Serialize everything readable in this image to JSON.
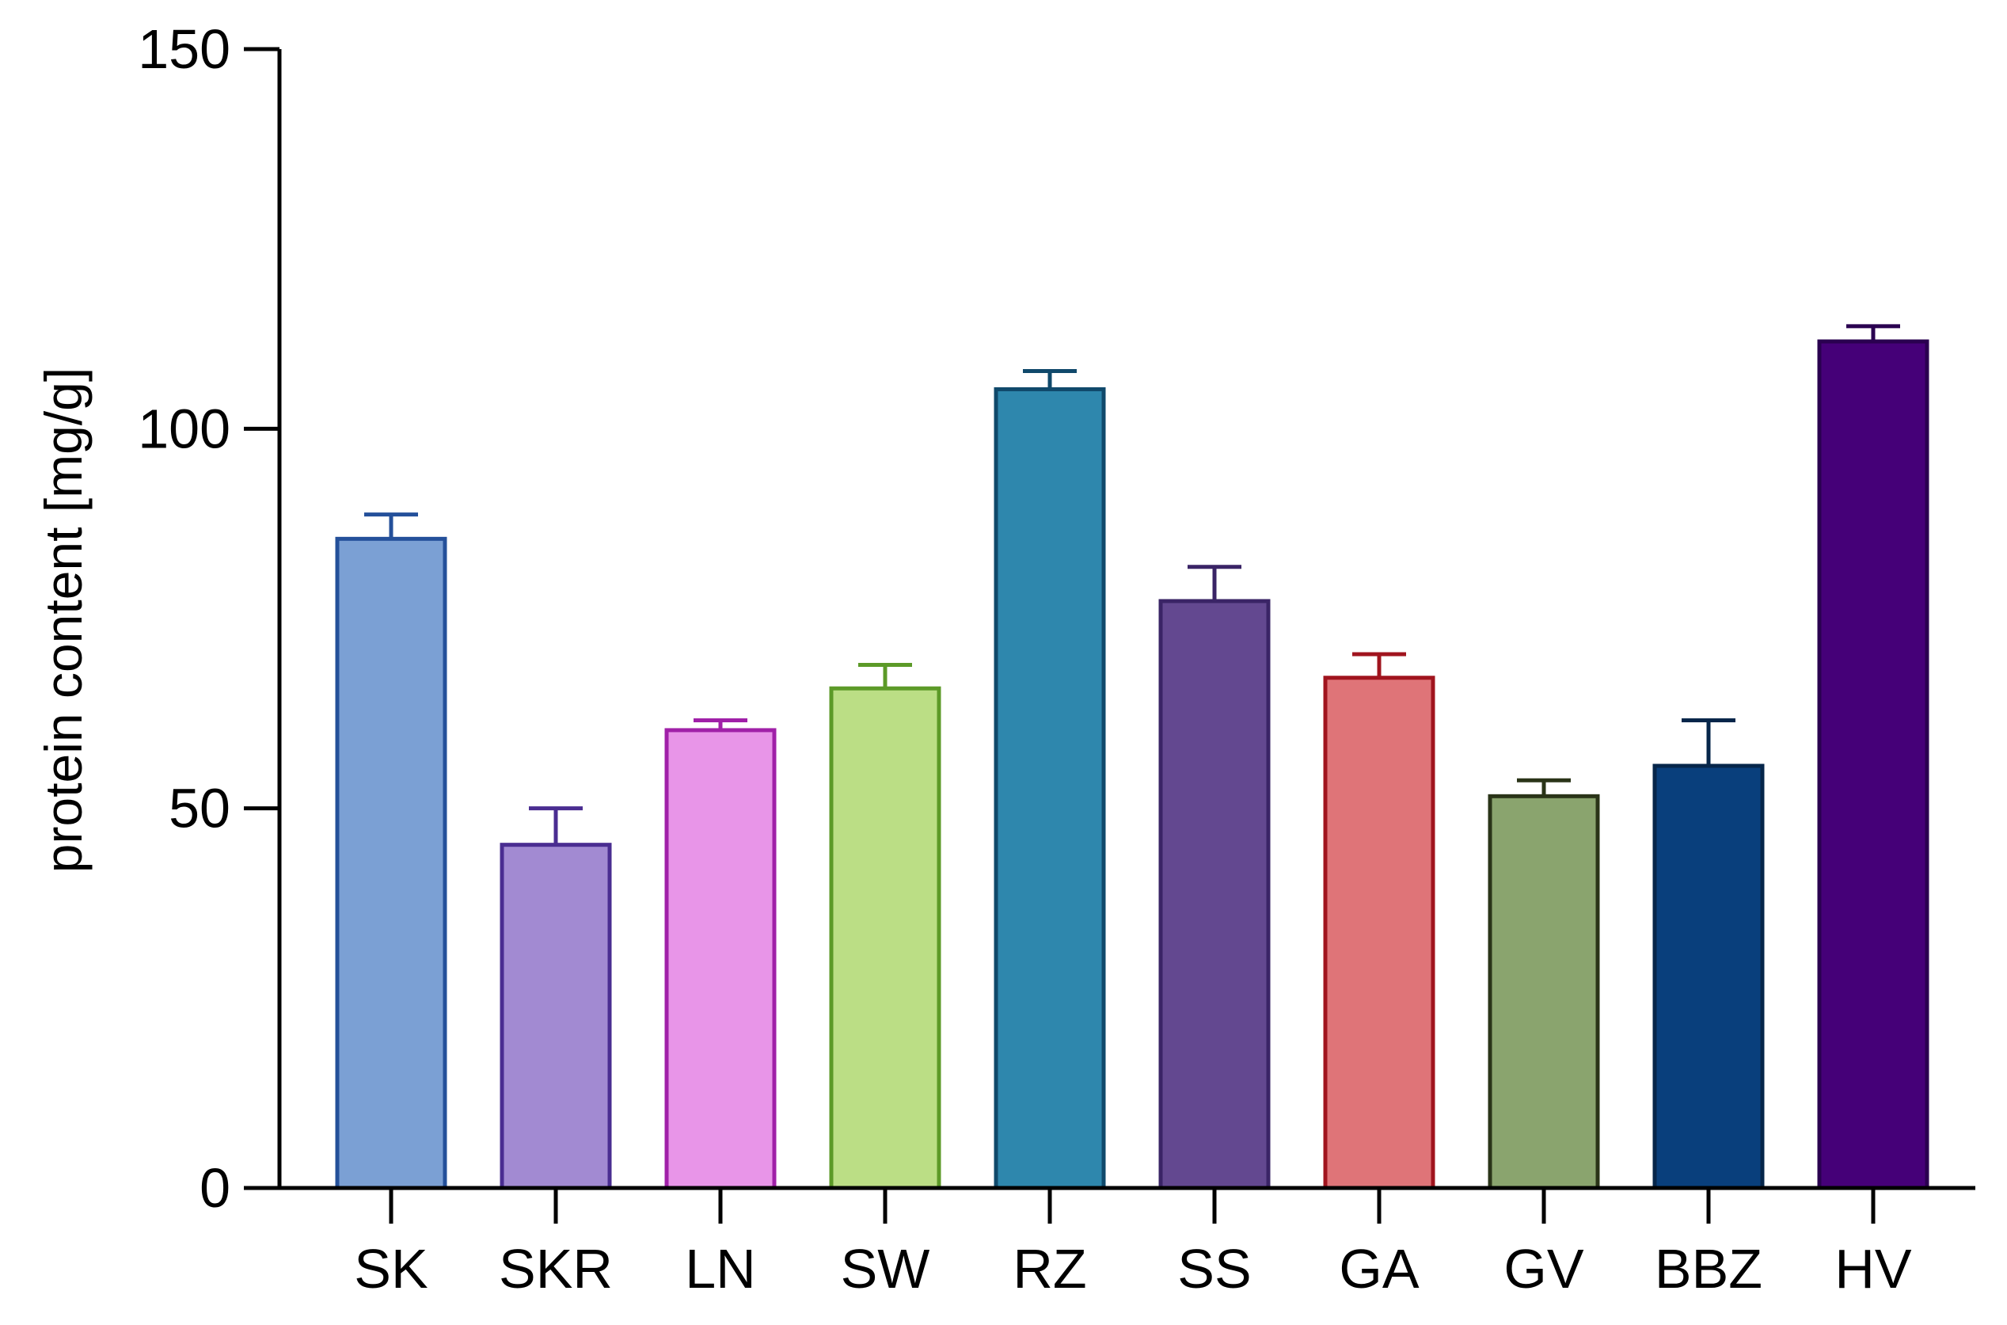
{
  "chart_data": {
    "type": "bar",
    "title": "",
    "xlabel": "",
    "ylabel": "protein content [mg/g]",
    "ylim": [
      0,
      150
    ],
    "yticks": [
      0,
      50,
      100,
      150
    ],
    "grid": false,
    "legend": "none",
    "categories": [
      "SK",
      "SKR",
      "LN",
      "SW",
      "RZ",
      "SS",
      "GA",
      "GV",
      "BBZ",
      "HV"
    ],
    "values": [
      85.5,
      45.2,
      60.3,
      65.8,
      105.2,
      77.3,
      67.2,
      51.6,
      55.6,
      111.5
    ],
    "errors": [
      3.2,
      4.8,
      1.3,
      3.1,
      2.4,
      4.5,
      3.1,
      2.1,
      6.0,
      2.0
    ],
    "fill_colors": [
      "#7BA0D4",
      "#A28AD2",
      "#E895E8",
      "#BBDE85",
      "#2E87AD",
      "#634890",
      "#DF7478",
      "#8AA46E",
      "#093F7C",
      "#450078"
    ],
    "edge_colors": [
      "#24509A",
      "#4A2D91",
      "#A020A8",
      "#5C9A28",
      "#10496B",
      "#3A2466",
      "#A0141E",
      "#2A3418",
      "#06264A",
      "#2A0050"
    ]
  }
}
